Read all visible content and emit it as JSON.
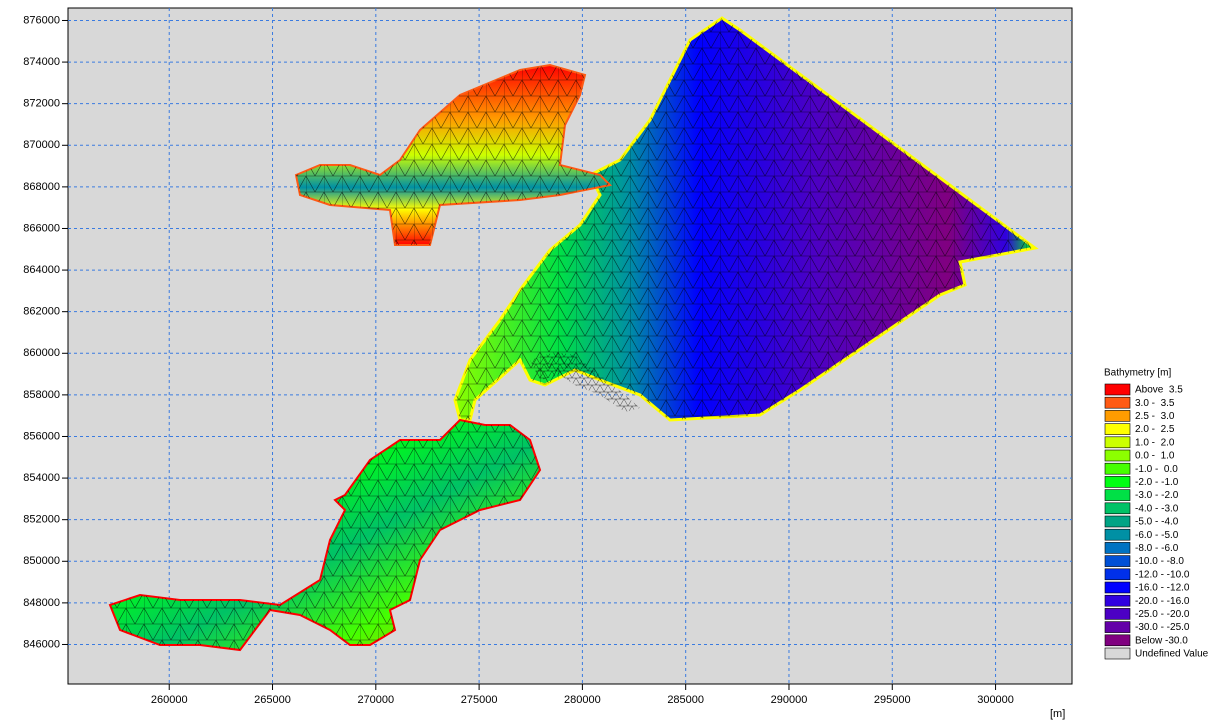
{
  "chart_data": {
    "type": "contour",
    "xlabel": "[m]",
    "xlim": [
      255100,
      303700
    ],
    "ylim": [
      844100,
      876600
    ],
    "xticks": [
      260000,
      265000,
      270000,
      275000,
      280000,
      285000,
      290000,
      295000,
      300000
    ],
    "yticks": [
      846000,
      848000,
      850000,
      852000,
      854000,
      856000,
      858000,
      860000,
      862000,
      864000,
      866000,
      868000,
      870000,
      872000,
      874000,
      876000
    ],
    "grid": true,
    "legend": {
      "title": "Bathymetry [m]",
      "items": [
        {
          "label": "Above  3.5",
          "color": "#ff0000"
        },
        {
          "label": "3.0 -  3.5",
          "color": "#ff5a14"
        },
        {
          "label": "2.5 -  3.0",
          "color": "#ff9c00"
        },
        {
          "label": "2.0 -  2.5",
          "color": "#ffff00"
        },
        {
          "label": "1.0 -  2.0",
          "color": "#ccff00"
        },
        {
          "label": "0.0 -  1.0",
          "color": "#8cff00"
        },
        {
          "label": "-1.0 -  0.0",
          "color": "#46ff00"
        },
        {
          "label": "-2.0 - -1.0",
          "color": "#00ff14"
        },
        {
          "label": "-3.0 - -2.0",
          "color": "#00e046"
        },
        {
          "label": "-4.0 - -3.0",
          "color": "#00c266"
        },
        {
          "label": "-5.0 - -4.0",
          "color": "#00a485"
        },
        {
          "label": "-6.0 - -5.0",
          "color": "#0090a4"
        },
        {
          "label": "-8.0 - -6.0",
          "color": "#0072c2"
        },
        {
          "label": "-10.0 - -8.0",
          "color": "#0050d6"
        },
        {
          "label": "-12.0 - -10.0",
          "color": "#0030ea"
        },
        {
          "label": "-16.0 - -12.0",
          "color": "#0000ff"
        },
        {
          "label": "-20.0 - -16.0",
          "color": "#3000e0"
        },
        {
          "label": "-25.0 - -20.0",
          "color": "#4c00c4"
        },
        {
          "label": "-30.0 - -25.0",
          "color": "#6400a8"
        },
        {
          "label": "Below -30.0",
          "color": "#800080"
        },
        {
          "label": "Undefined Value",
          "color": "#d8d8d8"
        }
      ]
    }
  }
}
